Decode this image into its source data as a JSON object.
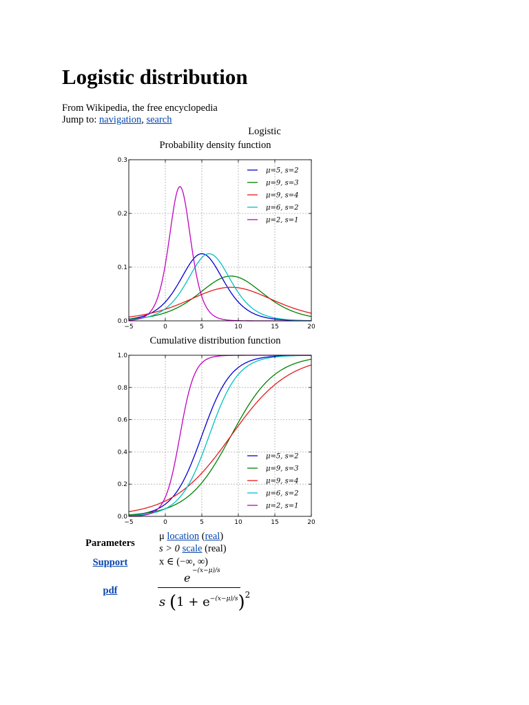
{
  "article": {
    "title": "Logistic distribution",
    "tagline": "From Wikipedia, the free encyclopedia",
    "jump_to_label": "Jump to:",
    "jump_links": [
      "navigation",
      "search"
    ]
  },
  "infobox": {
    "name": "Logistic",
    "pdf_caption": "Probability density function",
    "cdf_caption": "Cumulative distribution function",
    "rows": {
      "parameters_label": "Parameters",
      "param_mu_symbol": "μ",
      "param_mu_link1": "location",
      "param_mu_link2": "real",
      "param_s": "s > 0",
      "param_s_link": "scale",
      "param_s_suffix": "(real)",
      "support_label": "Support",
      "support_value": "x ∈ (−∞, ∞)",
      "pdf_label": "pdf",
      "pdf_numerator": "e",
      "pdf_exponent": "−(x−μ)/s",
      "pdf_denominator_s": "s",
      "pdf_denominator_inner": "1 + e",
      "pdf_denominator_exp": "−(x−μ)/s",
      "pdf_denominator_pow": "2"
    }
  },
  "chart_data": [
    {
      "type": "line",
      "title": "Probability density function",
      "xlim": [
        -5,
        20
      ],
      "ylim": [
        0,
        0.3
      ],
      "xticks": [
        "−5",
        "0",
        "5",
        "10",
        "15",
        "20"
      ],
      "yticks": [
        "0.0",
        "0.1",
        "0.2",
        "0.3"
      ],
      "grid": true,
      "legend_position": "top-right",
      "series": [
        {
          "name": "μ=5, s=2",
          "mu": 5,
          "s": 2,
          "color": "#0000cc"
        },
        {
          "name": "μ=9, s=3",
          "mu": 9,
          "s": 3,
          "color": "#008000"
        },
        {
          "name": "μ=9, s=4",
          "mu": 9,
          "s": 4,
          "color": "#e31a1c"
        },
        {
          "name": "μ=6, s=2",
          "mu": 6,
          "s": 2,
          "color": "#00c0c0"
        },
        {
          "name": "μ=2, s=1",
          "mu": 2,
          "s": 1,
          "color": "#c000c0"
        }
      ]
    },
    {
      "type": "line",
      "title": "Cumulative distribution function",
      "xlim": [
        -5,
        20
      ],
      "ylim": [
        0,
        1
      ],
      "xticks": [
        "−5",
        "0",
        "5",
        "10",
        "15",
        "20"
      ],
      "yticks": [
        "0.0",
        "0.2",
        "0.4",
        "0.6",
        "0.8",
        "1.0"
      ],
      "grid": true,
      "legend_position": "bottom-right",
      "series": [
        {
          "name": "μ=5, s=2",
          "mu": 5,
          "s": 2,
          "color": "#0000cc"
        },
        {
          "name": "μ=9, s=3",
          "mu": 9,
          "s": 3,
          "color": "#008000"
        },
        {
          "name": "μ=9, s=4",
          "mu": 9,
          "s": 4,
          "color": "#e31a1c"
        },
        {
          "name": "μ=6, s=2",
          "mu": 6,
          "s": 2,
          "color": "#00c0c0"
        },
        {
          "name": "μ=2, s=1",
          "mu": 2,
          "s": 1,
          "color": "#c000c0"
        }
      ]
    }
  ]
}
